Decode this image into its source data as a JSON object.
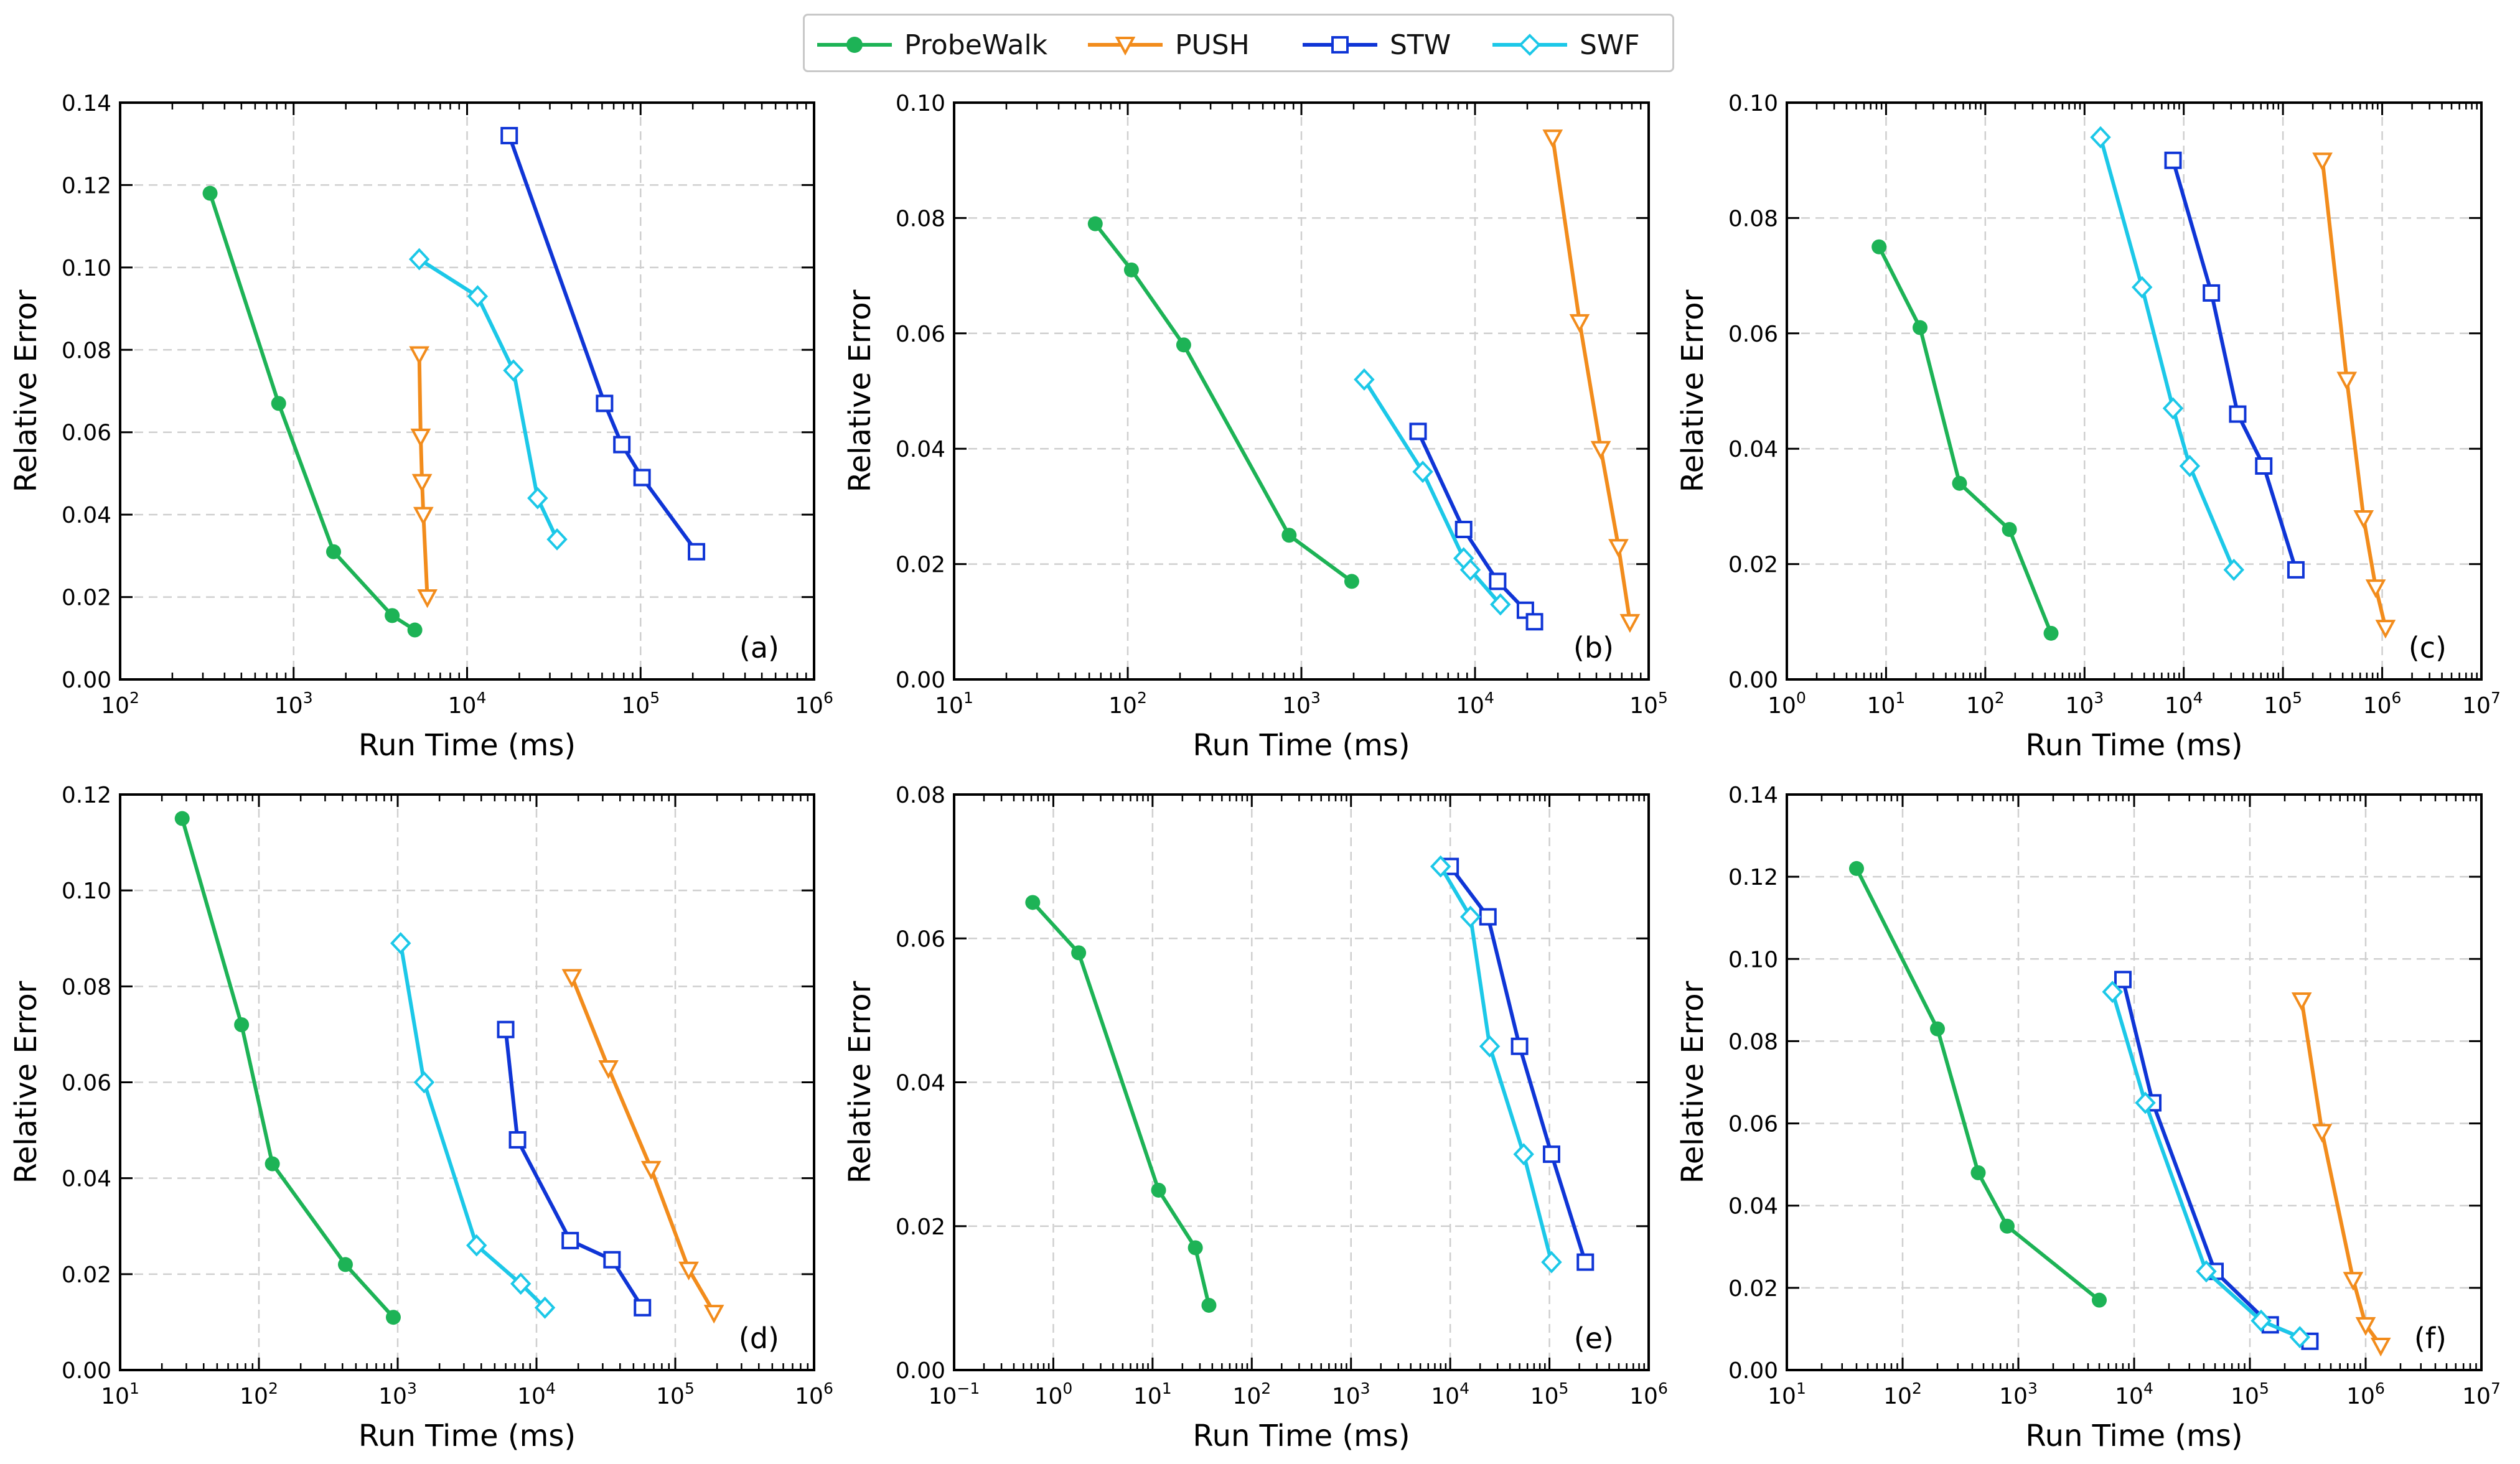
{
  "legend": {
    "items": [
      {
        "name": "ProbeWalk",
        "color": "#1db356",
        "marker": "circle-filled"
      },
      {
        "name": "PUSH",
        "color": "#f28c1c",
        "marker": "triangle-down-open"
      },
      {
        "name": "STW",
        "color": "#0f35d6",
        "marker": "square-open"
      },
      {
        "name": "SWF",
        "color": "#1cc8e8",
        "marker": "diamond-open"
      }
    ]
  },
  "chart_data": [
    {
      "type": "line",
      "panel_label": "(a)",
      "xlabel": "Run Time (ms)",
      "ylabel": "Relative Error",
      "xscale": "log",
      "xlim_exp": [
        2,
        6
      ],
      "ylim": [
        0,
        0.14
      ],
      "yticks": [
        "0.00",
        "0.02",
        "0.04",
        "0.06",
        "0.08",
        "0.10",
        "0.12",
        "0.14"
      ],
      "xtick_exps": [
        "2",
        "3",
        "4",
        "5",
        "6"
      ],
      "series": [
        {
          "name": "ProbeWalk",
          "x": [
            330,
            820,
            1700,
            3700,
            5000
          ],
          "y": [
            0.118,
            0.067,
            0.031,
            0.0155,
            0.012
          ]
        },
        {
          "name": "PUSH",
          "x": [
            5300,
            5400,
            5500,
            5600,
            5900
          ],
          "y": [
            0.079,
            0.059,
            0.048,
            0.04,
            0.02
          ]
        },
        {
          "name": "STW",
          "x": [
            17500,
            62000,
            78000,
            102000,
            210000
          ],
          "y": [
            0.132,
            0.067,
            0.057,
            0.049,
            0.031
          ]
        },
        {
          "name": "SWF",
          "x": [
            5300,
            11500,
            18500,
            25500,
            33000
          ],
          "y": [
            0.102,
            0.093,
            0.075,
            0.044,
            0.034
          ]
        }
      ]
    },
    {
      "type": "line",
      "panel_label": "(b)",
      "xlabel": "Run Time (ms)",
      "ylabel": "Relative Error",
      "xscale": "log",
      "xlim_exp": [
        1,
        5
      ],
      "ylim": [
        0,
        0.1
      ],
      "yticks": [
        "0.00",
        "0.02",
        "0.04",
        "0.06",
        "0.08",
        "0.10"
      ],
      "xtick_exps": [
        "1",
        "2",
        "3",
        "4",
        "5"
      ],
      "series": [
        {
          "name": "ProbeWalk",
          "x": [
            65,
            105,
            210,
            850,
            1950
          ],
          "y": [
            0.079,
            0.071,
            0.058,
            0.025,
            0.017
          ]
        },
        {
          "name": "PUSH",
          "x": [
            28000,
            40000,
            53000,
            67000,
            78000
          ],
          "y": [
            0.094,
            0.062,
            0.04,
            0.023,
            0.01
          ]
        },
        {
          "name": "STW",
          "x": [
            4700,
            8600,
            13500,
            19500,
            22000
          ],
          "y": [
            0.043,
            0.026,
            0.017,
            0.012,
            0.01
          ]
        },
        {
          "name": "SWF",
          "x": [
            2300,
            5000,
            8600,
            9400,
            14000
          ],
          "y": [
            0.052,
            0.036,
            0.021,
            0.019,
            0.013
          ]
        }
      ]
    },
    {
      "type": "line",
      "panel_label": "(c)",
      "xlabel": "Run Time (ms)",
      "ylabel": "Relative Error",
      "xscale": "log",
      "xlim_exp": [
        0,
        7
      ],
      "ylim": [
        0,
        0.1
      ],
      "yticks": [
        "0.00",
        "0.02",
        "0.04",
        "0.06",
        "0.08",
        "0.10"
      ],
      "xtick_exps": [
        "0",
        "1",
        "2",
        "3",
        "4",
        "5",
        "6",
        "7"
      ],
      "series": [
        {
          "name": "ProbeWalk",
          "x": [
            8.5,
            22,
            55,
            175,
            460
          ],
          "y": [
            0.075,
            0.061,
            0.034,
            0.026,
            0.008
          ]
        },
        {
          "name": "PUSH",
          "x": [
            250000,
            440000,
            650000,
            860000,
            1080000
          ],
          "y": [
            0.09,
            0.052,
            0.028,
            0.016,
            0.009
          ]
        },
        {
          "name": "STW",
          "x": [
            7800,
            19000,
            35000,
            64000,
            135000
          ],
          "y": [
            0.09,
            0.067,
            0.046,
            0.037,
            0.019
          ]
        },
        {
          "name": "SWF",
          "x": [
            1450,
            3800,
            7800,
            11500,
            32000
          ],
          "y": [
            0.094,
            0.068,
            0.047,
            0.037,
            0.019
          ]
        }
      ]
    },
    {
      "type": "line",
      "panel_label": "(d)",
      "xlabel": "Run Time (ms)",
      "ylabel": "Relative Error",
      "xscale": "log",
      "xlim_exp": [
        1,
        6
      ],
      "ylim": [
        0,
        0.12
      ],
      "yticks": [
        "0.00",
        "0.02",
        "0.04",
        "0.06",
        "0.08",
        "0.10",
        "0.12"
      ],
      "xtick_exps": [
        "1",
        "2",
        "3",
        "4",
        "5",
        "6"
      ],
      "series": [
        {
          "name": "ProbeWalk",
          "x": [
            28,
            75,
            125,
            420,
            930
          ],
          "y": [
            0.115,
            0.072,
            0.043,
            0.022,
            0.011
          ]
        },
        {
          "name": "PUSH",
          "x": [
            18000,
            33000,
            67000,
            125000,
            190000
          ],
          "y": [
            0.082,
            0.063,
            0.042,
            0.021,
            0.012
          ]
        },
        {
          "name": "STW",
          "x": [
            6000,
            7300,
            17500,
            35000,
            58000
          ],
          "y": [
            0.071,
            0.048,
            0.027,
            0.023,
            0.013
          ]
        },
        {
          "name": "SWF",
          "x": [
            1050,
            1550,
            3700,
            7700,
            11500
          ],
          "y": [
            0.089,
            0.06,
            0.026,
            0.018,
            0.013
          ]
        }
      ]
    },
    {
      "type": "line",
      "panel_label": "(e)",
      "xlabel": "Run Time (ms)",
      "ylabel": "Relative Error",
      "xscale": "log",
      "xlim_exp": [
        -1,
        6
      ],
      "ylim": [
        0,
        0.08
      ],
      "yticks": [
        "0.00",
        "0.02",
        "0.04",
        "0.06",
        "0.08"
      ],
      "xtick_exps": [
        "−1",
        "0",
        "1",
        "2",
        "3",
        "4",
        "5",
        "6"
      ],
      "series": [
        {
          "name": "ProbeWalk",
          "x": [
            0.62,
            1.8,
            11.5,
            27,
            37
          ],
          "y": [
            0.065,
            0.058,
            0.025,
            0.017,
            0.009
          ]
        },
        {
          "name": "STW",
          "x": [
            10000,
            24000,
            50000,
            105000,
            230000
          ],
          "y": [
            0.07,
            0.063,
            0.045,
            0.03,
            0.015
          ]
        },
        {
          "name": "SWF",
          "x": [
            8000,
            16000,
            25000,
            55000,
            105000
          ],
          "y": [
            0.07,
            0.063,
            0.045,
            0.03,
            0.015
          ]
        }
      ]
    },
    {
      "type": "line",
      "panel_label": "(f)",
      "xlabel": "Run Time (ms)",
      "ylabel": "Relative Error",
      "xscale": "log",
      "xlim_exp": [
        1,
        7
      ],
      "ylim": [
        0,
        0.14
      ],
      "yticks": [
        "0.00",
        "0.02",
        "0.04",
        "0.06",
        "0.08",
        "0.10",
        "0.12",
        "0.14"
      ],
      "xtick_exps": [
        "1",
        "2",
        "3",
        "4",
        "5",
        "6",
        "7"
      ],
      "series": [
        {
          "name": "ProbeWalk",
          "x": [
            40,
            200,
            450,
            800,
            5000
          ],
          "y": [
            0.122,
            0.083,
            0.048,
            0.035,
            0.017
          ]
        },
        {
          "name": "PUSH",
          "x": [
            280000,
            420000,
            780000,
            1000000,
            1350000
          ],
          "y": [
            0.09,
            0.058,
            0.022,
            0.011,
            0.006
          ]
        },
        {
          "name": "STW",
          "x": [
            8000,
            14500,
            50000,
            150000,
            330000
          ],
          "y": [
            0.095,
            0.065,
            0.024,
            0.011,
            0.007
          ]
        },
        {
          "name": "SWF",
          "x": [
            6500,
            12500,
            42000,
            125000,
            270000
          ],
          "y": [
            0.092,
            0.065,
            0.024,
            0.012,
            0.008
          ]
        }
      ]
    }
  ]
}
